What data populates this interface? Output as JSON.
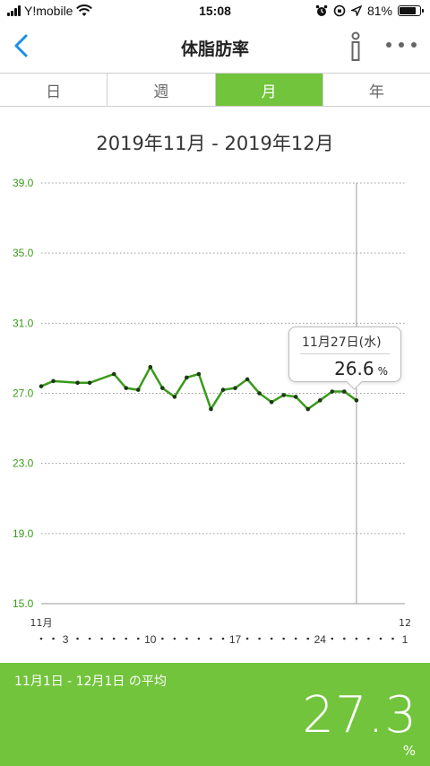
{
  "status_bar": {
    "carrier": "Y!mobile",
    "time": "15:08",
    "battery": "81%",
    "battery_level": 0.81
  },
  "nav": {
    "title": "体脂肪率"
  },
  "tabs": [
    {
      "label": "日",
      "active": false
    },
    {
      "label": "週",
      "active": false
    },
    {
      "label": "月",
      "active": true
    },
    {
      "label": "年",
      "active": false
    }
  ],
  "period_label": "2019年11月 - 2019年12月",
  "colors": {
    "accent": "#72c43c",
    "line": "#3a9a1a",
    "tick_label": "#3a9a1a"
  },
  "chart_data": {
    "type": "line",
    "ylim": [
      15.0,
      39.0
    ],
    "y_ticks": [
      "39.0",
      "35.0",
      "31.0",
      "27.0",
      "23.0",
      "19.0",
      "15.0"
    ],
    "x_month_labels": [
      {
        "day": 1,
        "label": "11月"
      },
      {
        "day": 31,
        "label": "12"
      }
    ],
    "x_tick_labels": [
      {
        "day": 3,
        "label": "3"
      },
      {
        "day": 10,
        "label": "10"
      },
      {
        "day": 17,
        "label": "17"
      },
      {
        "day": 24,
        "label": "24"
      },
      {
        "day": 31,
        "label": "1"
      }
    ],
    "series": [
      {
        "x": [
          1,
          2,
          4,
          5,
          7,
          8,
          9,
          10,
          11,
          12,
          13,
          14,
          15,
          16,
          17,
          18,
          19,
          20,
          21,
          22,
          23,
          24,
          25,
          26,
          27
        ],
        "values": [
          27.4,
          27.7,
          27.6,
          27.6,
          28.1,
          27.3,
          27.2,
          28.5,
          27.3,
          26.8,
          27.9,
          28.1,
          26.1,
          27.2,
          27.3,
          27.8,
          27.0,
          26.5,
          26.9,
          26.8,
          26.1,
          26.6,
          27.1,
          27.1,
          26.6
        ]
      }
    ],
    "selected": {
      "day": 27,
      "label": "11月27日(水)",
      "value": "26.6",
      "unit": "%"
    }
  },
  "summary": {
    "label": "11月1日 - 12月1日 の平均",
    "value": "27.3",
    "unit": "%"
  }
}
